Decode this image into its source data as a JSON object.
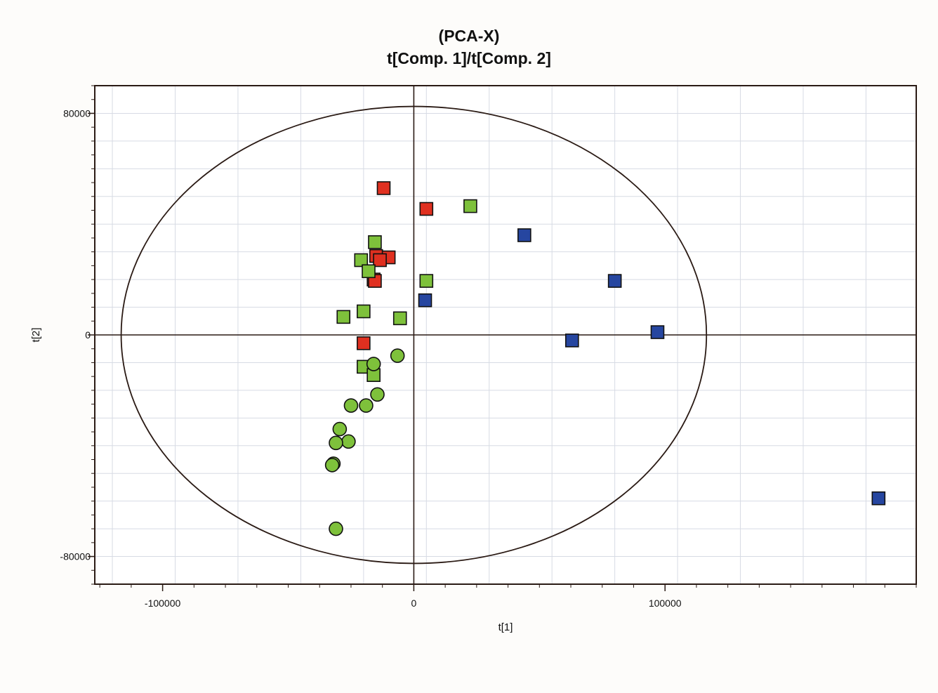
{
  "chart_data": {
    "type": "scatter",
    "title": "(PCA-X)",
    "subtitle": "t[Comp. 1]/t[Comp. 2]",
    "xlabel": "t[1]",
    "ylabel": "t[2]",
    "xlim": [
      -127000,
      200000
    ],
    "ylim": [
      -90000,
      90000
    ],
    "x_ticks": [
      -100000,
      0,
      100000
    ],
    "y_ticks": [
      -80000,
      0,
      80000
    ],
    "grid": true,
    "ellipse": {
      "rx": 116500,
      "ry": 82500
    },
    "series": [
      {
        "marker": "square",
        "color": "#e03020",
        "points": [
          {
            "x": -12000,
            "y": 53000
          },
          {
            "x": 5000,
            "y": 45500
          },
          {
            "x": -15000,
            "y": 28500
          },
          {
            "x": -10000,
            "y": 28000
          },
          {
            "x": -13500,
            "y": 27000
          },
          {
            "x": -16000,
            "y": 20000
          },
          {
            "x": -15500,
            "y": 19500
          },
          {
            "x": -20000,
            "y": -3000
          }
        ]
      },
      {
        "marker": "square",
        "color": "#7ec13b",
        "points": [
          {
            "x": 22500,
            "y": 46500
          },
          {
            "x": -15500,
            "y": 33500
          },
          {
            "x": -21000,
            "y": 27000
          },
          {
            "x": -18000,
            "y": 23000
          },
          {
            "x": 5000,
            "y": 19500
          },
          {
            "x": -20000,
            "y": 8500
          },
          {
            "x": -28000,
            "y": 6500
          },
          {
            "x": -5500,
            "y": 6000
          },
          {
            "x": -20000,
            "y": -11500
          },
          {
            "x": -16000,
            "y": -14500
          }
        ]
      },
      {
        "marker": "circle",
        "color": "#7ec13b",
        "points": [
          {
            "x": -16000,
            "y": -10500
          },
          {
            "x": -6500,
            "y": -7500
          },
          {
            "x": -14500,
            "y": -21500
          },
          {
            "x": -25000,
            "y": -25500
          },
          {
            "x": -19000,
            "y": -25500
          },
          {
            "x": -29500,
            "y": -34000
          },
          {
            "x": -26000,
            "y": -38500
          },
          {
            "x": -31000,
            "y": -39000
          },
          {
            "x": -32000,
            "y": -46500
          },
          {
            "x": -32500,
            "y": -47000
          },
          {
            "x": -31000,
            "y": -70000
          }
        ]
      },
      {
        "marker": "square",
        "color": "#2646a0",
        "points": [
          {
            "x": 44000,
            "y": 36000
          },
          {
            "x": 4500,
            "y": 12500
          },
          {
            "x": 80000,
            "y": 19500
          },
          {
            "x": 97000,
            "y": 1000
          },
          {
            "x": 63000,
            "y": -2000
          },
          {
            "x": 185000,
            "y": -59000
          }
        ]
      }
    ]
  }
}
